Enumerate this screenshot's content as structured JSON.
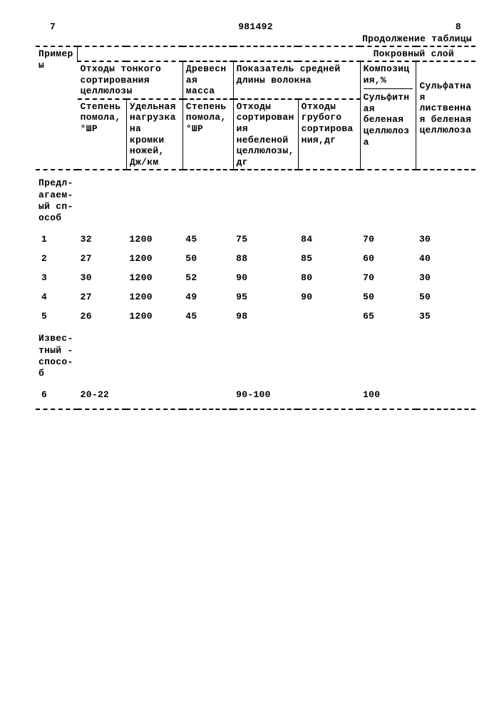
{
  "doc_number": "981492",
  "left_page": "7",
  "right_page": "8",
  "caption": "Продолжение таблицы",
  "headers": {
    "col0": "Примеры",
    "span_top": "Покровный слой",
    "grp1": "Отходы тонкого сортирования целлюлозы",
    "grp2": "Древесная масса",
    "grp3": "Показатель средней длины волокна",
    "grp4": "Композиция,%",
    "c1": "Степень помола, °ШР",
    "c2": "Удельная нагрузка на кромки ножей, Дж/км",
    "c3": "Степень помола, °ШР",
    "c4": "Отходы сортирования небеленой целлюлозы,дг",
    "c5": "Отходы грубого сортирования,дг",
    "c6": "Сульфитная беленая целлюлоза",
    "c7": "Сульфатная лиственная беленая целлюлоза"
  },
  "sections": {
    "s1": "Предлагаемый способ",
    "s2": "Известный способ"
  },
  "rows": {
    "r1": {
      "n": "1",
      "c1": "32",
      "c2": "1200",
      "c3": "45",
      "c4": "75",
      "c5": "84",
      "c6": "70",
      "c7": "30"
    },
    "r2": {
      "n": "2",
      "c1": "27",
      "c2": "1200",
      "c3": "50",
      "c4": "88",
      "c5": "85",
      "c6": "60",
      "c7": "40"
    },
    "r3": {
      "n": "3",
      "c1": "30",
      "c2": "1200",
      "c3": "52",
      "c4": "90",
      "c5": "80",
      "c6": "70",
      "c7": "30"
    },
    "r4": {
      "n": "4",
      "c1": "27",
      "c2": "1200",
      "c3": "49",
      "c4": "95",
      "c5": "90",
      "c6": "50",
      "c7": "50"
    },
    "r5": {
      "n": "5",
      "c1": "26",
      "c2": "1200",
      "c3": "45",
      "c4": "98",
      "c5": "",
      "c6": "65",
      "c7": "35"
    },
    "r6": {
      "n": "6",
      "c1": "20-22",
      "c2": "",
      "c3": "",
      "c4": "90-100",
      "c5": "",
      "c6": "100",
      "c7": ""
    }
  }
}
